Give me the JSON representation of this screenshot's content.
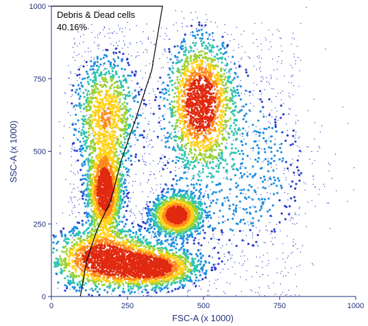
{
  "chart_data": {
    "type": "scatter",
    "style": "density dot plot (flow cytometry)",
    "xlabel": "FSC-A (x 1000)",
    "ylabel": "SSC-A (x 1000)",
    "xlim": [
      0,
      1000
    ],
    "ylim": [
      0,
      1000
    ],
    "x_ticks": [
      0,
      250,
      500,
      750,
      1000
    ],
    "y_ticks": [
      0,
      250,
      500,
      750,
      1000
    ],
    "x_tick_labels": [
      "0",
      "250",
      "500",
      "750",
      "1000"
    ],
    "y_tick_labels": [
      "0",
      "250",
      "500",
      "750",
      "1000"
    ],
    "grid": false,
    "density_colors": [
      "#2a3dc8",
      "#1f8fe0",
      "#2fc4b0",
      "#9ad235",
      "#ffd21a",
      "#ff8a1a",
      "#e02a10"
    ],
    "gate": {
      "label_line1": "Debris & Dead cells",
      "label_line2": "40.16%",
      "polygon": [
        [
          0,
          1000
        ],
        [
          365,
          1000
        ],
        [
          330,
          780
        ],
        [
          280,
          620
        ],
        [
          230,
          470
        ],
        [
          195,
          330
        ],
        [
          150,
          230
        ],
        [
          115,
          120
        ],
        [
          95,
          0
        ],
        [
          0,
          0
        ]
      ]
    },
    "populations": [
      {
        "center": [
          170,
          130
        ],
        "spread": [
          90,
          55
        ],
        "peak_density": "high"
      },
      {
        "center": [
          330,
          100
        ],
        "spread": [
          80,
          35
        ],
        "peak_density": "high"
      },
      {
        "center": [
          175,
          360
        ],
        "spread": [
          30,
          80
        ],
        "peak_density": "high"
      },
      {
        "center": [
          180,
          620
        ],
        "spread": [
          55,
          110
        ],
        "peak_density": "medium"
      },
      {
        "center": [
          490,
          670
        ],
        "spread": [
          55,
          110
        ],
        "peak_density": "high"
      },
      {
        "center": [
          410,
          280
        ],
        "spread": [
          40,
          35
        ],
        "peak_density": "high"
      },
      {
        "center": [
          600,
          450
        ],
        "spread": [
          150,
          200
        ],
        "peak_density": "low"
      }
    ]
  }
}
